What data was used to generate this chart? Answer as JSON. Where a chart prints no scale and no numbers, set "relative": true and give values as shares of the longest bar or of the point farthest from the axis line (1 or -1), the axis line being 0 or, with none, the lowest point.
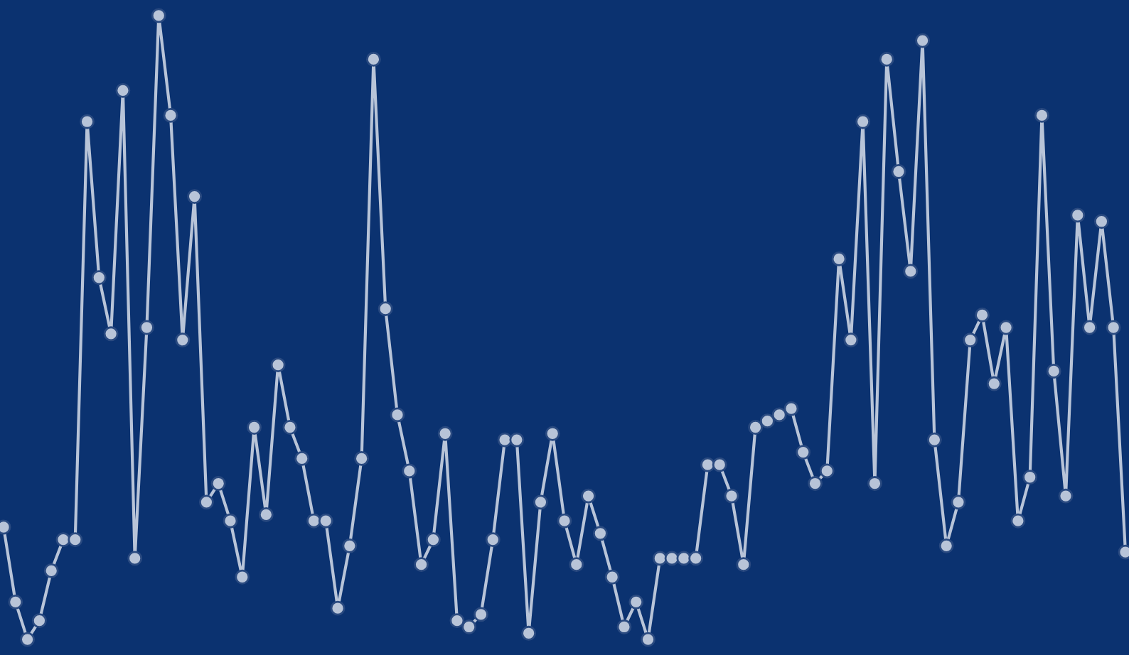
{
  "chart_data": {
    "type": "line",
    "relative": true,
    "marker": "circle",
    "line_style": "solid",
    "legend": false,
    "categories": [
      null,
      null,
      null,
      null,
      null,
      null,
      null,
      null,
      null,
      null,
      null,
      null,
      null,
      null,
      null,
      null,
      null,
      null,
      null,
      null,
      null,
      null,
      null,
      null,
      null,
      null,
      null,
      null,
      null,
      null,
      null,
      null,
      null,
      null,
      null,
      null,
      null,
      null,
      null,
      null,
      null,
      null,
      null,
      null,
      null,
      null,
      null,
      null,
      null,
      null,
      null,
      null,
      null,
      null,
      null,
      null,
      null,
      null,
      null,
      null,
      null,
      null,
      null,
      null,
      null,
      null,
      null,
      null,
      null,
      null,
      null,
      null,
      null,
      null,
      null,
      null,
      null,
      null,
      null,
      null,
      null,
      null,
      null,
      null,
      null,
      null,
      null,
      null,
      null,
      null,
      null,
      null,
      null,
      null,
      null
    ],
    "series": [
      {
        "color": "#b8c4d8",
        "values": [
          0.18,
          0.06,
          0,
          0.03,
          0.11,
          0.16,
          0.16,
          0.83,
          0.58,
          0.49,
          0.88,
          0.13,
          0.5,
          1,
          0.84,
          0.48,
          0.71,
          0.22,
          0.25,
          0.19,
          0.1,
          0.34,
          0.2,
          0.44,
          0.34,
          0.29,
          0.19,
          0.19,
          0.05,
          0.15,
          0.29,
          0.93,
          0.53,
          0.36,
          0.27,
          0.12,
          0.16,
          0.33,
          0.03,
          0.02,
          0.04,
          0.16,
          0.32,
          0.32,
          0.01,
          0.22,
          0.33,
          0.19,
          0.12,
          0.23,
          0.17,
          0.1,
          0.02,
          0.06,
          0,
          0.13,
          0.13,
          0.13,
          0.13,
          0.28,
          0.28,
          0.23,
          0.12,
          0.34,
          0.35,
          0.36,
          0.37,
          0.3,
          0.25,
          0.27,
          0.61,
          0.48,
          0.83,
          0.25,
          0.93,
          0.75,
          0.59,
          0.96,
          0.32,
          0.15,
          0.22,
          0.48,
          0.52,
          0.41,
          0.5,
          0.19,
          0.26,
          0.84,
          0.43,
          0.23,
          0.68,
          0.5,
          0.67,
          0.5,
          0.14
        ]
      }
    ]
  }
}
